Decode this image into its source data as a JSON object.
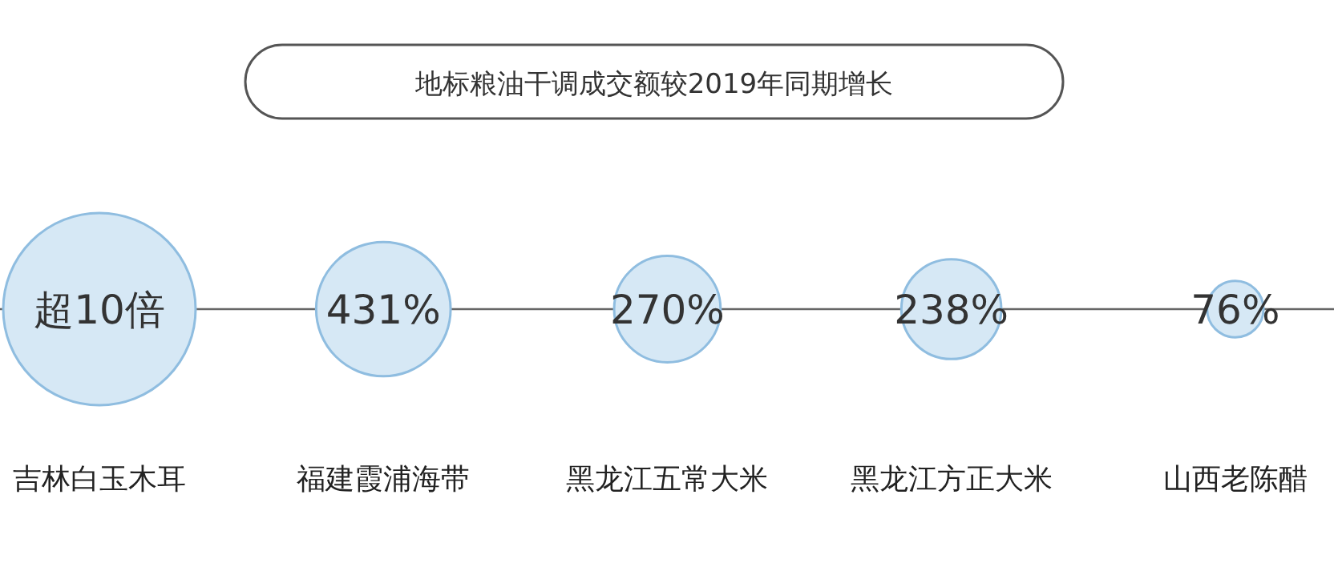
{
  "chart_data": {
    "type": "other",
    "title": "地标粮油干调成交额较2019年同期增长",
    "categories": [
      "吉林白玉木耳",
      "福建霞浦海带",
      "黑龙江五常大米",
      "黑龙江方正大米",
      "山西老陈醋"
    ],
    "values": [
      null,
      431,
      270,
      238,
      76
    ],
    "value_labels": [
      "超10倍",
      "431%",
      "270%",
      "238%",
      "76%"
    ],
    "color": "#d6e8f5"
  }
}
